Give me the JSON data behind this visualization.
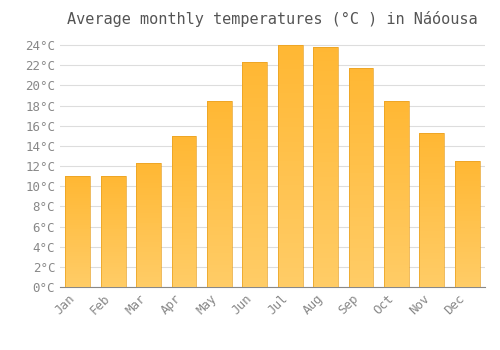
{
  "title": "Average monthly temperatures (°C ) in Náóousa",
  "months": [
    "Jan",
    "Feb",
    "Mar",
    "Apr",
    "May",
    "Jun",
    "Jul",
    "Aug",
    "Sep",
    "Oct",
    "Nov",
    "Dec"
  ],
  "values": [
    11.0,
    11.0,
    12.3,
    15.0,
    18.5,
    22.3,
    24.0,
    23.8,
    21.7,
    18.5,
    15.3,
    12.5
  ],
  "bar_color_top": "#FFB733",
  "bar_color_bottom": "#FFCC66",
  "bar_edge_color": "#E8A020",
  "background_color": "#FFFFFF",
  "grid_color": "#DDDDDD",
  "text_color": "#888888",
  "title_color": "#555555",
  "ylim": [
    0,
    25
  ],
  "ytick_values": [
    0,
    2,
    4,
    6,
    8,
    10,
    12,
    14,
    16,
    18,
    20,
    22,
    24
  ],
  "title_fontsize": 11,
  "tick_fontsize": 9,
  "font_family": "monospace"
}
